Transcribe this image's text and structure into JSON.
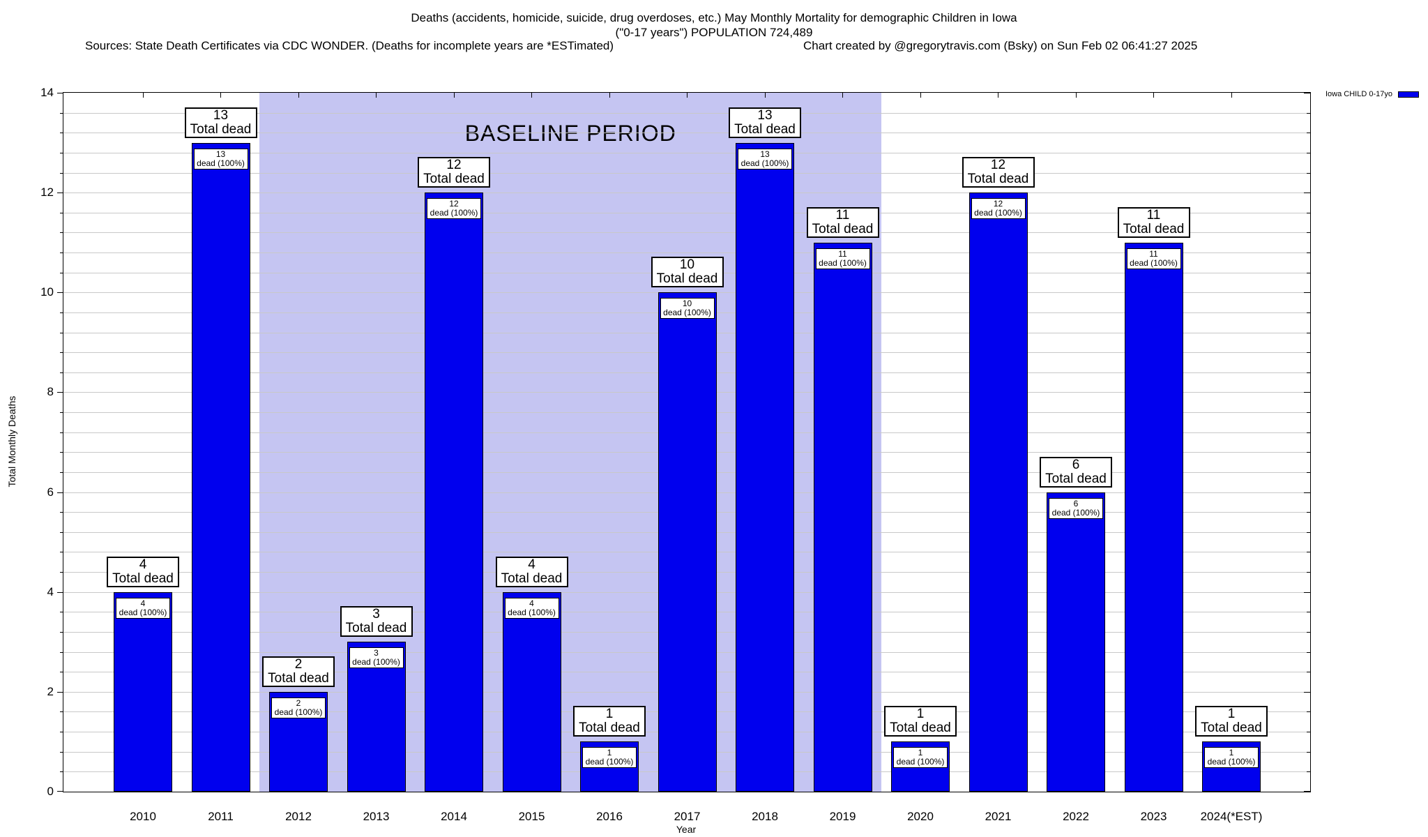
{
  "header": {
    "title_line1": "Deaths (accidents, homicide, suicide, drug overdoses, etc.) May Monthly Mortality for demographic Children in Iowa",
    "title_line2": "(\"0-17 years\") POPULATION 724,489",
    "sources_note": "Sources: State Death Certificates via CDC WONDER. (Deaths for incomplete years are *ESTimated)",
    "credit_note": "Chart created by @gregorytravis.com (Bsky) on Sun Feb 02 06:41:27 2025"
  },
  "chart_data": {
    "type": "bar",
    "title": "Deaths (accidents, homicide, suicide, drug overdoses, etc.) May Monthly Mortality for demographic Children in Iowa",
    "subtitle": "(\"0-17 years\") POPULATION 724,489",
    "xlabel": "Year",
    "ylabel": "Total Monthly Deaths",
    "categories": [
      "2010",
      "2011",
      "2012",
      "2013",
      "2014",
      "2015",
      "2016",
      "2017",
      "2018",
      "2019",
      "2020",
      "2021",
      "2022",
      "2023",
      "2024(*EST)"
    ],
    "values": [
      4,
      13,
      2,
      3,
      12,
      4,
      1,
      10,
      13,
      11,
      1,
      12,
      6,
      11,
      1
    ],
    "series_name": "Iowa CHILD 0-17yo",
    "ylim": [
      0,
      14
    ],
    "ytick_step": 2,
    "yminor_step": 0.4,
    "grid": true,
    "legend_position": "top-right",
    "bar_color": "#0000ee",
    "baseline_region": {
      "label": "BASELINE PERIOD",
      "start_category": "2012",
      "end_category": "2019",
      "color": "#c5c5f2"
    },
    "bar_annotation_top": "Total dead",
    "bar_annotation_inner": "dead (100%)"
  }
}
